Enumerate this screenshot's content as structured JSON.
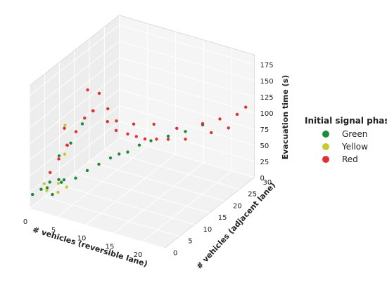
{
  "chart_data": {
    "type": "scatter",
    "title": "",
    "xlabel": "# vehicles (reversible lane)",
    "ylabel": "# vehicles (adjacent lane)",
    "zlabel": "Evacuation time (s)",
    "xlim": [
      0,
      24
    ],
    "ylim": [
      0,
      30
    ],
    "zlim": [
      0,
      190
    ],
    "x_ticks": [
      "0",
      "5",
      "10",
      "15",
      "20"
    ],
    "y_ticks": [
      "0",
      "5",
      "10",
      "15",
      "20",
      "25",
      "30"
    ],
    "z_ticks": [
      "0",
      "25",
      "50",
      "75",
      "100",
      "125",
      "150",
      "175"
    ],
    "grid": true,
    "legend": {
      "title": "Initial signal phase",
      "placement": "right",
      "entries": [
        {
          "label": "Green",
          "color": "#1f8a3b"
        },
        {
          "label": "Yellow",
          "color": "#c8c832"
        },
        {
          "label": "Red",
          "color": "#e03131"
        }
      ]
    },
    "series": [
      {
        "name": "Green",
        "color": "#1f8a3b",
        "points": [
          [
            1,
            2,
            25
          ],
          [
            1,
            4,
            20
          ],
          [
            2,
            3,
            35
          ],
          [
            2,
            6,
            28
          ],
          [
            3,
            2,
            22
          ],
          [
            3,
            5,
            30
          ],
          [
            4,
            4,
            40
          ],
          [
            5,
            6,
            38
          ],
          [
            6,
            8,
            45
          ],
          [
            7,
            10,
            50
          ],
          [
            8,
            12,
            55
          ],
          [
            9,
            13,
            60
          ],
          [
            10,
            14,
            62
          ],
          [
            11,
            16,
            68
          ],
          [
            12,
            18,
            70
          ],
          [
            14,
            20,
            75
          ],
          [
            16,
            22,
            80
          ],
          [
            18,
            24,
            88
          ],
          [
            0,
            1,
            18
          ],
          [
            1,
            8,
            55
          ],
          [
            2,
            10,
            70
          ],
          [
            3,
            12,
            95
          ]
        ]
      },
      {
        "name": "Yellow",
        "color": "#c8c832",
        "points": [
          [
            1,
            3,
            30
          ],
          [
            2,
            2,
            26
          ],
          [
            2,
            8,
            60
          ],
          [
            3,
            4,
            32
          ],
          [
            4,
            2,
            28
          ],
          [
            5,
            3,
            35
          ],
          [
            1,
            10,
            95
          ]
        ]
      },
      {
        "name": "Red",
        "color": "#e03131",
        "points": [
          [
            1,
            5,
            40
          ],
          [
            2,
            6,
            60
          ],
          [
            3,
            7,
            80
          ],
          [
            4,
            8,
            100
          ],
          [
            5,
            9,
            120
          ],
          [
            6,
            10,
            130
          ],
          [
            7,
            8,
            140
          ],
          [
            8,
            11,
            115
          ],
          [
            9,
            12,
            100
          ],
          [
            10,
            14,
            90
          ],
          [
            11,
            15,
            85
          ],
          [
            12,
            16,
            80
          ],
          [
            13,
            18,
            75
          ],
          [
            14,
            20,
            70
          ],
          [
            16,
            22,
            68
          ],
          [
            18,
            24,
            90
          ],
          [
            20,
            26,
            95
          ],
          [
            22,
            28,
            100
          ],
          [
            23,
            29,
            110
          ],
          [
            21,
            27,
            80
          ],
          [
            19,
            25,
            75
          ],
          [
            6,
            12,
            150
          ],
          [
            5,
            10,
            160
          ],
          [
            3,
            6,
            110
          ],
          [
            4,
            5,
            90
          ],
          [
            7,
            13,
            125
          ],
          [
            8,
            14,
            105
          ],
          [
            10,
            16,
            98
          ],
          [
            12,
            19,
            92
          ],
          [
            15,
            21,
            86
          ]
        ]
      }
    ]
  }
}
